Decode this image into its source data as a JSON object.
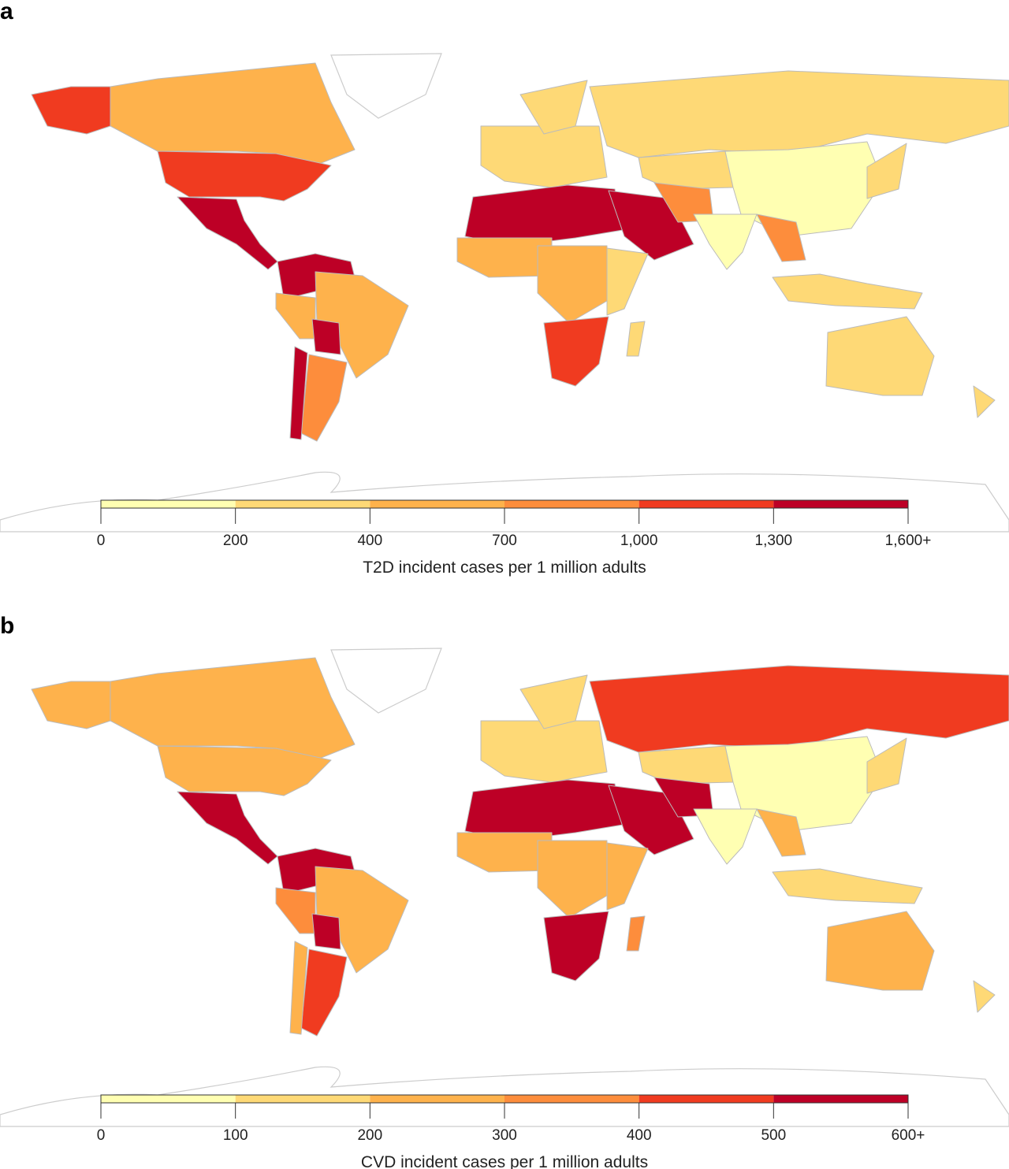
{
  "panels": [
    {
      "label": "a",
      "legend_title": "T2D incident cases per 1 million adults",
      "ticks": [
        "0",
        "200",
        "400",
        "700",
        "1,000",
        "1,300",
        "1,600+"
      ]
    },
    {
      "label": "b",
      "legend_title": "CVD incident cases per 1 million adults",
      "ticks": [
        "0",
        "100",
        "200",
        "300",
        "400",
        "500",
        "600+"
      ]
    }
  ],
  "colors": [
    "#FFFFB2",
    "#FED976",
    "#FEB24C",
    "#FD8D3C",
    "#F03B20",
    "#BD0026"
  ],
  "chart_data": [
    {
      "type": "choropleth",
      "title": "T2D incident cases per 1 million adults",
      "bins": [
        [
          0,
          200
        ],
        [
          200,
          400
        ],
        [
          400,
          700
        ],
        [
          700,
          1000
        ],
        [
          1000,
          1300
        ],
        [
          1300,
          1600
        ]
      ],
      "regions": {
        "Alaska": 4,
        "Canada": 2,
        "United States": 4,
        "Mexico & Central America": 5,
        "Colombia & Venezuela": 5,
        "Brazil": 2,
        "Peru & Ecuador": 2,
        "Bolivia": 5,
        "Argentina": 3,
        "Chile": 5,
        "Western Europe": 1,
        "Scandinavia": 1,
        "Russia": 1,
        "Kazakhstan": 1,
        "China & Mongolia": 0,
        "North Africa": 5,
        "Arabian Peninsula": 5,
        "Iran & Pakistan": 3,
        "India": 0,
        "Southeast Asia": 3,
        "West Africa": 2,
        "Central Africa": 2,
        "East Africa": 1,
        "Southern Africa": 4,
        "Madagascar": 1,
        "Indonesia": 1,
        "Australia": 1,
        "New Zealand": 1,
        "Japan": 1
      }
    },
    {
      "type": "choropleth",
      "title": "CVD incident cases per 1 million adults",
      "bins": [
        [
          0,
          100
        ],
        [
          100,
          200
        ],
        [
          200,
          300
        ],
        [
          300,
          400
        ],
        [
          400,
          500
        ],
        [
          500,
          600
        ]
      ],
      "regions": {
        "Alaska": 2,
        "Canada": 2,
        "United States": 2,
        "Mexico & Central America": 5,
        "Colombia & Venezuela": 5,
        "Brazil": 2,
        "Peru & Ecuador": 3,
        "Bolivia": 5,
        "Argentina": 4,
        "Chile": 2,
        "Western Europe": 1,
        "Scandinavia": 1,
        "Russia": 4,
        "Kazakhstan": 1,
        "China & Mongolia": 0,
        "North Africa": 5,
        "Arabian Peninsula": 5,
        "Iran & Pakistan": 5,
        "India": 0,
        "Southeast Asia": 2,
        "West Africa": 2,
        "Central Africa": 2,
        "East Africa": 2,
        "Southern Africa": 5,
        "Madagascar": 3,
        "Indonesia": 1,
        "Australia": 2,
        "New Zealand": 1,
        "Japan": 1
      }
    }
  ]
}
